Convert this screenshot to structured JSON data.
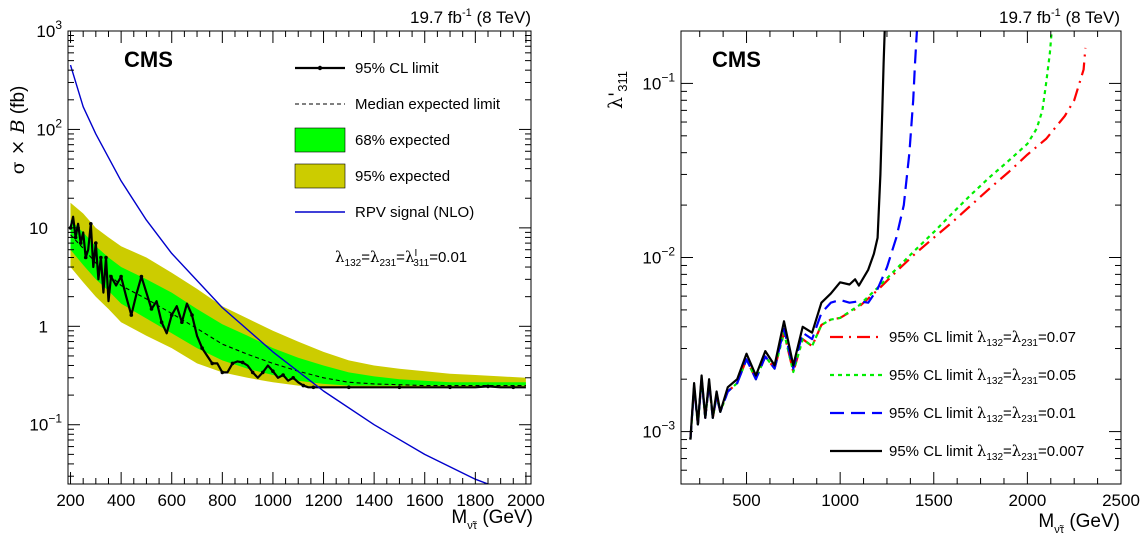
{
  "chart_data": [
    {
      "type": "line",
      "panel": "left",
      "lumi": {
        "text": "19.7 fb",
        "sup": "-1",
        "energy": " (8 TeV)"
      },
      "experiment": "CMS",
      "ylabel": {
        "main": "σ × ",
        "italic": "B",
        "unit": " (fb)"
      },
      "xlabel": {
        "main": "M",
        "sub": "ν̃τ",
        "unit": " (GeV)"
      },
      "x_scale": "linear",
      "y_scale": "log",
      "xlim": [
        190,
        2020
      ],
      "ylim": [
        0.025,
        1000
      ],
      "x_ticks": [
        200,
        400,
        600,
        800,
        1000,
        1200,
        1400,
        1600,
        1800,
        2000
      ],
      "x_tick_labels": [
        "200",
        "400",
        "600",
        "800",
        "1000",
        "1200",
        "1400",
        "1600",
        "1800",
        "2000"
      ],
      "y_ticks": [
        0.1,
        1,
        10,
        100,
        1000
      ],
      "y_tick_labels": [
        {
          "base": "10",
          "exp": "−1"
        },
        {
          "base": "1",
          "exp": ""
        },
        {
          "base": "10",
          "exp": ""
        },
        {
          "base": "10",
          "exp": "2"
        },
        {
          "base": "10",
          "exp": "3"
        }
      ],
      "legend_position": "top-right",
      "legend": [
        {
          "label": "95% CL limit",
          "style": "line-marker",
          "color": "#000000"
        },
        {
          "label": "Median expected limit",
          "style": "dashed",
          "color": "#000000"
        },
        {
          "label": "68% expected",
          "style": "band",
          "color": "#00ff00"
        },
        {
          "label": "95% expected",
          "style": "band",
          "color": "#cccc00"
        },
        {
          "label": "RPV signal (NLO)",
          "style": "line",
          "color": "#0000cc"
        }
      ],
      "annotation": {
        "text": "λ132=λ231=λ'311=0.01"
      },
      "band95": {
        "x": [
          200,
          250,
          300,
          350,
          400,
          500,
          600,
          700,
          800,
          900,
          1000,
          1100,
          1200,
          1300,
          1400,
          1500,
          1600,
          1700,
          1800,
          1900,
          2000
        ],
        "low": [
          4.0,
          2.8,
          2.0,
          1.5,
          1.1,
          0.8,
          0.6,
          0.42,
          0.34,
          0.3,
          0.27,
          0.25,
          0.24,
          0.24,
          0.24,
          0.24,
          0.24,
          0.24,
          0.24,
          0.24,
          0.24
        ],
        "high": [
          18,
          14,
          10,
          8,
          6.5,
          5.0,
          3.5,
          2.4,
          1.6,
          1.2,
          0.9,
          0.7,
          0.55,
          0.45,
          0.4,
          0.37,
          0.35,
          0.33,
          0.32,
          0.31,
          0.3
        ]
      },
      "band68": {
        "x": [
          200,
          250,
          300,
          350,
          400,
          500,
          600,
          700,
          800,
          900,
          1000,
          1100,
          1200,
          1300,
          1400,
          1500,
          1600,
          1700,
          1800,
          1900,
          2000
        ],
        "low": [
          6.0,
          4.2,
          3.0,
          2.3,
          1.7,
          1.2,
          0.85,
          0.6,
          0.45,
          0.37,
          0.32,
          0.28,
          0.26,
          0.25,
          0.25,
          0.25,
          0.25,
          0.25,
          0.25,
          0.25,
          0.25
        ],
        "high": [
          12,
          9,
          6.5,
          5.0,
          4.0,
          3.0,
          2.2,
          1.5,
          1.05,
          0.8,
          0.6,
          0.48,
          0.4,
          0.34,
          0.31,
          0.29,
          0.28,
          0.27,
          0.27,
          0.27,
          0.27
        ]
      },
      "series": [
        {
          "name": "Median expected limit",
          "style": "dashed",
          "color": "#000000",
          "x": [
            200,
            250,
            300,
            350,
            400,
            500,
            600,
            700,
            800,
            900,
            1000,
            1100,
            1200,
            1300,
            1400,
            1600,
            1800,
            2000
          ],
          "y": [
            8.5,
            6.2,
            4.4,
            3.4,
            2.6,
            1.9,
            1.35,
            0.95,
            0.66,
            0.52,
            0.42,
            0.35,
            0.3,
            0.27,
            0.26,
            0.25,
            0.25,
            0.25
          ]
        },
        {
          "name": "95% CL limit",
          "style": "line-marker",
          "color": "#000000",
          "x": [
            200,
            210,
            220,
            230,
            240,
            250,
            260,
            270,
            280,
            290,
            300,
            310,
            320,
            330,
            340,
            350,
            360,
            380,
            400,
            420,
            440,
            460,
            480,
            500,
            520,
            540,
            560,
            580,
            600,
            620,
            640,
            660,
            680,
            700,
            720,
            740,
            760,
            780,
            800,
            820,
            840,
            860,
            880,
            900,
            920,
            940,
            960,
            980,
            1000,
            1020,
            1040,
            1060,
            1080,
            1100,
            1120,
            1140,
            1160,
            1200,
            1300,
            1400,
            1500,
            1600,
            1700,
            1800,
            1850,
            1900,
            1950,
            2000
          ],
          "y": [
            10,
            13,
            8,
            11,
            7,
            9,
            5,
            6,
            11,
            4,
            7,
            3,
            5,
            2.2,
            5,
            1.8,
            3.2,
            2.6,
            3.2,
            2.0,
            1.3,
            2.1,
            3.2,
            2.2,
            1.5,
            1.8,
            1.1,
            0.85,
            1.3,
            1.6,
            1.1,
            1.7,
            1.3,
            0.8,
            0.6,
            0.5,
            0.42,
            0.42,
            0.34,
            0.34,
            0.42,
            0.44,
            0.43,
            0.4,
            0.34,
            0.3,
            0.34,
            0.4,
            0.35,
            0.3,
            0.32,
            0.28,
            0.3,
            0.27,
            0.25,
            0.24,
            0.24,
            0.24,
            0.24,
            0.24,
            0.24,
            0.24,
            0.24,
            0.24,
            0.245,
            0.24,
            0.24,
            0.24
          ]
        },
        {
          "name": "RPV signal (NLO)",
          "style": "line",
          "color": "#0000cc",
          "x": [
            200,
            250,
            300,
            400,
            500,
            600,
            800,
            1000,
            1200,
            1400,
            1600,
            1800,
            1850
          ],
          "y": [
            450,
            170,
            90,
            30,
            12,
            5.5,
            1.55,
            0.55,
            0.22,
            0.1,
            0.05,
            0.028,
            0.025
          ]
        }
      ]
    },
    {
      "type": "line",
      "panel": "right",
      "lumi": {
        "text": "19.7 fb",
        "sup": "-1",
        "energy": " (8 TeV)"
      },
      "experiment": "CMS",
      "ylabel": {
        "main": "λ'",
        "sub": "311"
      },
      "xlabel": {
        "main": "M",
        "sub": "ν̃τ",
        "unit": " (GeV)"
      },
      "x_scale": "linear",
      "y_scale": "log",
      "xlim": [
        150,
        2500
      ],
      "ylim": [
        0.0005,
        0.2
      ],
      "x_ticks": [
        500,
        1000,
        1500,
        2000,
        2500
      ],
      "x_tick_labels": [
        "500",
        "1000",
        "1500",
        "2000",
        "2500"
      ],
      "y_ticks": [
        0.001,
        0.01,
        0.1
      ],
      "y_tick_labels": [
        {
          "base": "10",
          "exp": "−3"
        },
        {
          "base": "10",
          "exp": "−2"
        },
        {
          "base": "10",
          "exp": "−1"
        }
      ],
      "legend_position": "bottom-right",
      "legend": [
        {
          "label": "95% CL limit λ132=λ231=0.07",
          "style": "dashdot",
          "color": "#ff0000"
        },
        {
          "label": "95% CL limit λ132=λ231=0.05",
          "style": "dotted",
          "color": "#00ee00"
        },
        {
          "label": "95% CL limit λ132=λ231=0.01",
          "style": "longdash",
          "color": "#0000ff"
        },
        {
          "label": "95% CL limit λ132=λ231=0.007",
          "style": "solid",
          "color": "#000000"
        }
      ],
      "series": [
        {
          "name": "95% CL limit λ132=λ231=0.07",
          "style": "dashdot",
          "color": "#ff0000",
          "x": [
            200,
            220,
            240,
            260,
            280,
            300,
            320,
            340,
            360,
            400,
            450,
            500,
            550,
            600,
            650,
            700,
            750,
            800,
            850,
            900,
            950,
            1000,
            1100,
            1200,
            1300,
            1400,
            1500,
            1600,
            1700,
            1800,
            1900,
            2000,
            2100,
            2200,
            2250,
            2300,
            2310
          ],
          "y": [
            0.0009,
            0.0018,
            0.0011,
            0.002,
            0.0012,
            0.0019,
            0.0012,
            0.0016,
            0.0013,
            0.0017,
            0.0019,
            0.0026,
            0.002,
            0.0027,
            0.0023,
            0.0037,
            0.0022,
            0.0034,
            0.0031,
            0.0041,
            0.0044,
            0.0045,
            0.0052,
            0.0065,
            0.0083,
            0.0105,
            0.013,
            0.016,
            0.02,
            0.025,
            0.031,
            0.039,
            0.048,
            0.065,
            0.08,
            0.12,
            0.16
          ]
        },
        {
          "name": "95% CL limit λ132=λ231=0.05",
          "style": "dotted",
          "color": "#00ee00",
          "x": [
            200,
            220,
            240,
            260,
            280,
            300,
            320,
            340,
            360,
            400,
            450,
            500,
            550,
            600,
            650,
            700,
            750,
            800,
            850,
            900,
            950,
            1000,
            1100,
            1200,
            1300,
            1400,
            1500,
            1600,
            1700,
            1800,
            1900,
            2000,
            2050,
            2080,
            2100,
            2120,
            2130
          ],
          "y": [
            0.0009,
            0.0018,
            0.0011,
            0.002,
            0.0012,
            0.0019,
            0.0012,
            0.0016,
            0.0013,
            0.0017,
            0.0019,
            0.0026,
            0.002,
            0.0027,
            0.0023,
            0.0037,
            0.0022,
            0.0034,
            0.0031,
            0.0041,
            0.0044,
            0.0045,
            0.0053,
            0.0067,
            0.0086,
            0.011,
            0.014,
            0.018,
            0.023,
            0.029,
            0.036,
            0.045,
            0.055,
            0.07,
            0.1,
            0.15,
            0.2
          ]
        },
        {
          "name": "95% CL limit λ132=λ231=0.01",
          "style": "longdash",
          "color": "#0000ff",
          "x": [
            200,
            220,
            240,
            260,
            280,
            300,
            320,
            340,
            360,
            400,
            450,
            500,
            550,
            600,
            650,
            700,
            750,
            800,
            850,
            900,
            950,
            1000,
            1050,
            1100,
            1150,
            1200,
            1250,
            1300,
            1340,
            1370,
            1390,
            1400,
            1410
          ],
          "y": [
            0.0009,
            0.0018,
            0.0011,
            0.002,
            0.0012,
            0.0019,
            0.0012,
            0.0016,
            0.0013,
            0.0017,
            0.0019,
            0.0026,
            0.002,
            0.0027,
            0.0023,
            0.0039,
            0.0023,
            0.0037,
            0.0034,
            0.0048,
            0.0055,
            0.0057,
            0.0055,
            0.0056,
            0.0055,
            0.0066,
            0.0088,
            0.013,
            0.02,
            0.04,
            0.08,
            0.13,
            0.2
          ]
        },
        {
          "name": "95% CL limit λ132=λ231=0.007",
          "style": "solid",
          "color": "#000000",
          "x": [
            200,
            220,
            240,
            260,
            280,
            300,
            320,
            340,
            360,
            400,
            450,
            500,
            550,
            600,
            650,
            700,
            750,
            800,
            850,
            900,
            950,
            1000,
            1050,
            1080,
            1100,
            1150,
            1180,
            1200,
            1215,
            1225,
            1232,
            1238
          ],
          "y": [
            0.0009,
            0.0019,
            0.0011,
            0.0021,
            0.0012,
            0.002,
            0.0012,
            0.0017,
            0.0013,
            0.0018,
            0.002,
            0.0028,
            0.0021,
            0.0029,
            0.0024,
            0.0043,
            0.0024,
            0.004,
            0.0037,
            0.0055,
            0.0062,
            0.0072,
            0.007,
            0.0075,
            0.0069,
            0.0085,
            0.0105,
            0.013,
            0.03,
            0.07,
            0.13,
            0.2
          ]
        }
      ]
    }
  ]
}
